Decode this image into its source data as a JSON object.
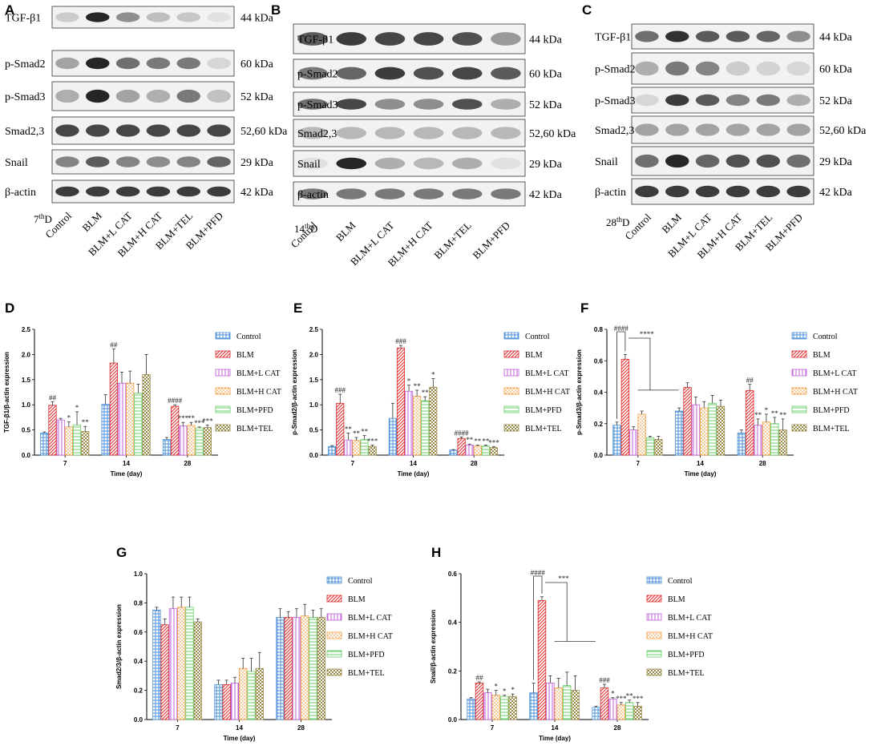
{
  "blots": [
    {
      "panel": "A",
      "day_label": "7thD",
      "day_num": "7",
      "day_sup": "th",
      "day_suffix": "D",
      "proteins": [
        {
          "name": "TGF-β1",
          "kda": "44 kDa"
        },
        {
          "name": "p-Smad2",
          "kda": "60 kDa"
        },
        {
          "name": "p-Smad3",
          "kda": "52 kDa"
        },
        {
          "name": "Smad2,3",
          "kda": "52,60 kDa"
        },
        {
          "name": "Snail",
          "kda": "29 kDa"
        },
        {
          "name": "β-actin",
          "kda": "42 kDa"
        }
      ],
      "lanes": [
        "Control",
        "BLM",
        "BLM+L CAT",
        "BLM+H CAT",
        "BLM+TEL",
        "BLM+PFD"
      ]
    },
    {
      "panel": "B",
      "day_label": "14thD",
      "day_num": "14",
      "day_sup": "th",
      "day_suffix": "D",
      "proteins": [
        {
          "name": "TGF-β1",
          "kda": "44 kDa"
        },
        {
          "name": "p-Smad2",
          "kda": "60 kDa"
        },
        {
          "name": "p-Smad3",
          "kda": "52 kDa"
        },
        {
          "name": "Smad2,3",
          "kda": "52,60 kDa"
        },
        {
          "name": "Snail",
          "kda": "29 kDa"
        },
        {
          "name": "β-actin",
          "kda": "42 kDa"
        }
      ],
      "lanes": [
        "Control",
        "BLM",
        "BLM+L CAT",
        "BLM+H CAT",
        "BLM+TEL",
        "BLM+PFD"
      ]
    },
    {
      "panel": "C",
      "day_label": "28thD",
      "day_num": "28",
      "day_sup": "th",
      "day_suffix": "D",
      "proteins": [
        {
          "name": "TGF-β1",
          "kda": "44 kDa"
        },
        {
          "name": "p-Smad2",
          "kda": "60 kDa"
        },
        {
          "name": "p-Smad3",
          "kda": "52 kDa"
        },
        {
          "name": "Smad2,3",
          "kda": "52,60 kDa"
        },
        {
          "name": "Snail",
          "kda": "29 kDa"
        },
        {
          "name": "β-actin",
          "kda": "42 kDa"
        }
      ],
      "lanes": [
        "Control",
        "BLM",
        "BLM+L CAT",
        "BLM+H CAT",
        "BLM+TEL",
        "BLM+PFD"
      ]
    }
  ],
  "series_style": [
    {
      "name": "Control",
      "color": "#4a8fd8",
      "pattern": "cross"
    },
    {
      "name": "BLM",
      "color": "#e02828",
      "pattern": "diag"
    },
    {
      "name": "BLM+L CAT",
      "color": "#c060d8",
      "pattern": "vert"
    },
    {
      "name": "BLM+H CAT",
      "color": "#f09a3a",
      "pattern": "dash"
    },
    {
      "name": "BLM+PFD",
      "color": "#66cc66",
      "pattern": "horiz"
    },
    {
      "name": "BLM+TEL",
      "color": "#9a8a4a",
      "pattern": "dots"
    }
  ],
  "chart_data": [
    {
      "panel": "D",
      "type": "bar",
      "xlabel": "Time (day)",
      "ylabel": "TGF-β1/β-actin expression",
      "categories": [
        "7",
        "14",
        "28"
      ],
      "ylim": [
        0,
        2.5
      ],
      "yticks": [
        "0.0",
        "0.5",
        "1.0",
        "1.5",
        "2.0",
        "2.5"
      ],
      "series": [
        {
          "name": "Control",
          "values": [
            0.44,
            1.01,
            0.31
          ],
          "errors": [
            0.02,
            0.19,
            0.04
          ]
        },
        {
          "name": "BLM",
          "values": [
            0.99,
            1.83,
            0.97
          ],
          "errors": [
            0.07,
            0.28,
            0.03
          ]
        },
        {
          "name": "BLM+L CAT",
          "values": [
            0.7,
            1.43,
            0.58
          ],
          "errors": [
            0.03,
            0.22,
            0.07
          ]
        },
        {
          "name": "BLM+H CAT",
          "values": [
            0.56,
            1.43,
            0.59
          ],
          "errors": [
            0.1,
            0.24,
            0.06
          ]
        },
        {
          "name": "BLM+PFD",
          "values": [
            0.6,
            1.23,
            0.54
          ],
          "errors": [
            0.26,
            0.18,
            0.02
          ]
        },
        {
          "name": "BLM+TEL",
          "values": [
            0.47,
            1.6,
            0.55
          ],
          "errors": [
            0.1,
            0.4,
            0.05
          ]
        }
      ],
      "significance": [
        {
          "category": 0,
          "series": 1,
          "label": "##"
        },
        {
          "category": 0,
          "series": 3,
          "label": "*"
        },
        {
          "category": 0,
          "series": 4,
          "label": "*"
        },
        {
          "category": 0,
          "series": 5,
          "label": "**"
        },
        {
          "category": 1,
          "series": 1,
          "label": "##"
        },
        {
          "category": 2,
          "series": 1,
          "label": "####"
        },
        {
          "category": 2,
          "series": 2,
          "label": "***"
        },
        {
          "category": 2,
          "series": 3,
          "label": "**"
        },
        {
          "category": 2,
          "series": 4,
          "label": "***"
        },
        {
          "category": 2,
          "series": 5,
          "label": "***"
        }
      ]
    },
    {
      "panel": "E",
      "type": "bar",
      "xlabel": "Time (day)",
      "ylabel": "p-Smad2/β-actin expression",
      "categories": [
        "7",
        "14",
        "28"
      ],
      "ylim": [
        0,
        2.5
      ],
      "yticks": [
        "0.0",
        "0.5",
        "1.0",
        "1.5",
        "2.0",
        "2.5"
      ],
      "series": [
        {
          "name": "Control",
          "values": [
            0.17,
            0.73,
            0.1
          ],
          "errors": [
            0.02,
            0.3,
            0.01
          ]
        },
        {
          "name": "BLM",
          "values": [
            1.03,
            2.13,
            0.33
          ],
          "errors": [
            0.18,
            0.05,
            0.03
          ]
        },
        {
          "name": "BLM+L CAT",
          "values": [
            0.3,
            1.27,
            0.2
          ],
          "errors": [
            0.14,
            0.12,
            0.02
          ]
        },
        {
          "name": "BLM+H CAT",
          "values": [
            0.29,
            1.17,
            0.18
          ],
          "errors": [
            0.06,
            0.12,
            0.02
          ]
        },
        {
          "name": "BLM+PFD",
          "values": [
            0.31,
            1.08,
            0.18
          ],
          "errors": [
            0.08,
            0.08,
            0.02
          ]
        },
        {
          "name": "BLM+TEL",
          "values": [
            0.17,
            1.35,
            0.15
          ],
          "errors": [
            0.03,
            0.17,
            0.02
          ]
        }
      ],
      "significance": [
        {
          "category": 0,
          "series": 1,
          "label": "###"
        },
        {
          "category": 0,
          "series": 2,
          "label": "**"
        },
        {
          "category": 0,
          "series": 3,
          "label": "**"
        },
        {
          "category": 0,
          "series": 4,
          "label": "**"
        },
        {
          "category": 0,
          "series": 5,
          "label": "***"
        },
        {
          "category": 1,
          "series": 1,
          "label": "###"
        },
        {
          "category": 1,
          "series": 2,
          "label": "*"
        },
        {
          "category": 1,
          "series": 3,
          "label": "**"
        },
        {
          "category": 1,
          "series": 4,
          "label": "**"
        },
        {
          "category": 1,
          "series": 5,
          "label": "*"
        },
        {
          "category": 2,
          "series": 1,
          "label": "####"
        },
        {
          "category": 2,
          "series": 2,
          "label": "**"
        },
        {
          "category": 2,
          "series": 3,
          "label": "**"
        },
        {
          "category": 2,
          "series": 4,
          "label": "**"
        },
        {
          "category": 2,
          "series": 5,
          "label": "***"
        }
      ]
    },
    {
      "panel": "F",
      "type": "bar",
      "xlabel": "Time (day)",
      "ylabel": "p-Smad3/β-actin expression",
      "categories": [
        "7",
        "14",
        "28"
      ],
      "ylim": [
        0,
        0.8
      ],
      "yticks": [
        "0.0",
        "0.2",
        "0.4",
        "0.6",
        "0.8"
      ],
      "series": [
        {
          "name": "Control",
          "values": [
            0.19,
            0.28,
            0.14
          ],
          "errors": [
            0.02,
            0.02,
            0.02
          ]
        },
        {
          "name": "BLM",
          "values": [
            0.61,
            0.43,
            0.41
          ],
          "errors": [
            0.03,
            0.03,
            0.04
          ]
        },
        {
          "name": "BLM+L CAT",
          "values": [
            0.16,
            0.32,
            0.19
          ],
          "errors": [
            0.02,
            0.05,
            0.04
          ]
        },
        {
          "name": "BLM+H CAT",
          "values": [
            0.26,
            0.3,
            0.21
          ],
          "errors": [
            0.02,
            0.04,
            0.05
          ]
        },
        {
          "name": "BLM+PFD",
          "values": [
            0.11,
            0.33,
            0.2
          ],
          "errors": [
            0.01,
            0.05,
            0.04
          ]
        },
        {
          "name": "BLM+TEL",
          "values": [
            0.1,
            0.31,
            0.16
          ],
          "errors": [
            0.02,
            0.04,
            0.07
          ]
        }
      ],
      "significance": [
        {
          "category": 2,
          "series": 1,
          "label": "##"
        },
        {
          "category": 2,
          "series": 2,
          "label": "**"
        },
        {
          "category": 2,
          "series": 3,
          "label": "*"
        },
        {
          "category": 2,
          "series": 4,
          "label": "**"
        },
        {
          "category": 2,
          "series": 5,
          "label": "**"
        }
      ],
      "brackets": [
        {
          "category": 0,
          "left_label": "####",
          "right_label": "****"
        }
      ]
    },
    {
      "panel": "G",
      "type": "bar",
      "xlabel": "Time (day)",
      "ylabel": "Smad2/3/β-actin expression",
      "categories": [
        "7",
        "14",
        "28"
      ],
      "ylim": [
        0,
        1.0
      ],
      "yticks": [
        "0.0",
        "0.2",
        "0.4",
        "0.6",
        "0.8",
        "1.0"
      ],
      "series": [
        {
          "name": "Control",
          "values": [
            0.75,
            0.24,
            0.7
          ],
          "errors": [
            0.02,
            0.03,
            0.06
          ]
        },
        {
          "name": "BLM",
          "values": [
            0.65,
            0.24,
            0.7
          ],
          "errors": [
            0.04,
            0.03,
            0.04
          ]
        },
        {
          "name": "BLM+L CAT",
          "values": [
            0.76,
            0.25,
            0.7
          ],
          "errors": [
            0.08,
            0.04,
            0.06
          ]
        },
        {
          "name": "BLM+H CAT",
          "values": [
            0.77,
            0.35,
            0.71
          ],
          "errors": [
            0.07,
            0.07,
            0.08
          ]
        },
        {
          "name": "BLM+PFD",
          "values": [
            0.77,
            0.33,
            0.7
          ],
          "errors": [
            0.07,
            0.09,
            0.05
          ]
        },
        {
          "name": "BLM+TEL",
          "values": [
            0.67,
            0.35,
            0.7
          ],
          "errors": [
            0.02,
            0.11,
            0.06
          ]
        }
      ],
      "significance": []
    },
    {
      "panel": "H",
      "type": "bar",
      "xlabel": "Time (day)",
      "ylabel": "Snail/β-actin expression",
      "categories": [
        "7",
        "14",
        "28"
      ],
      "ylim": [
        0,
        0.6
      ],
      "yticks": [
        "0.0",
        "0.2",
        "0.4",
        "0.6"
      ],
      "series": [
        {
          "name": "Control",
          "values": [
            0.085,
            0.11,
            0.05
          ],
          "errors": [
            0.005,
            0.04,
            0.005
          ]
        },
        {
          "name": "BLM",
          "values": [
            0.15,
            0.49,
            0.13
          ],
          "errors": [
            0.005,
            0.015,
            0.015
          ]
        },
        {
          "name": "BLM+L CAT",
          "values": [
            0.11,
            0.15,
            0.085
          ],
          "errors": [
            0.015,
            0.03,
            0.005
          ]
        },
        {
          "name": "BLM+H CAT",
          "values": [
            0.1,
            0.13,
            0.06
          ],
          "errors": [
            0.02,
            0.04,
            0.01
          ]
        },
        {
          "name": "BLM+PFD",
          "values": [
            0.095,
            0.14,
            0.07
          ],
          "errors": [
            0.005,
            0.055,
            0.01
          ]
        },
        {
          "name": "BLM+TEL",
          "values": [
            0.095,
            0.12,
            0.055
          ],
          "errors": [
            0.01,
            0.06,
            0.015
          ]
        }
      ],
      "significance": [
        {
          "category": 0,
          "series": 1,
          "label": "##"
        },
        {
          "category": 0,
          "series": 3,
          "label": "*"
        },
        {
          "category": 0,
          "series": 4,
          "label": "*"
        },
        {
          "category": 0,
          "series": 5,
          "label": "*"
        },
        {
          "category": 2,
          "series": 1,
          "label": "###"
        },
        {
          "category": 2,
          "series": 2,
          "label": "*"
        },
        {
          "category": 2,
          "series": 3,
          "label": "***"
        },
        {
          "category": 2,
          "series": 4,
          "label": "**"
        },
        {
          "category": 2,
          "series": 5,
          "label": "***"
        }
      ],
      "brackets": [
        {
          "category": 1,
          "left_label": "####",
          "right_label": "***"
        }
      ]
    }
  ]
}
